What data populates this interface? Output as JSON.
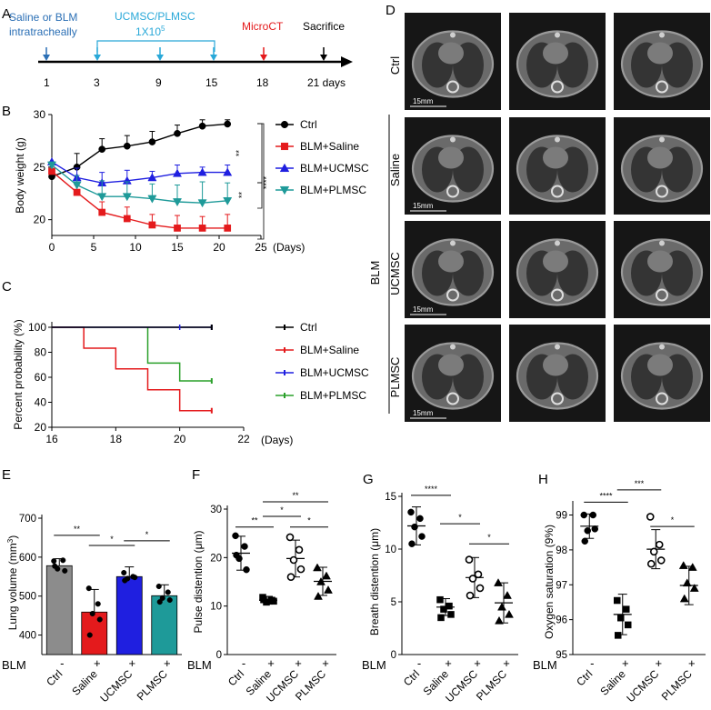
{
  "colors": {
    "ctrl": "#000000",
    "saline": "#e41a1c",
    "ucmsc": "#1f1fe0",
    "plmsc": "#1e9a99",
    "green": "#2aa02a",
    "blue": "#2b6fb5",
    "cyan": "#29a8d8",
    "micro": "#e41a1c",
    "grayBar": "#8c8c8c"
  },
  "panelA": {
    "letter": "A",
    "events": [
      {
        "label": "Saline or BLM",
        "label2": "intratracheally",
        "day": 1,
        "color": "#2b6fb5"
      },
      {
        "label": "UCMSC/PLMSC",
        "label2": "1X10",
        "sup": "5",
        "days": [
          3,
          9,
          15
        ],
        "color": "#29a8d8"
      },
      {
        "label": "MicroCT",
        "day": 18,
        "color": "#e41a1c"
      },
      {
        "label": "Sacrifice",
        "day": 21,
        "color": "#000000"
      }
    ],
    "tick_labels": [
      "1",
      "3",
      "9",
      "15",
      "18",
      "21 days"
    ]
  },
  "chart_data": [
    {
      "panel": "B",
      "letter": "B",
      "type": "line",
      "ylabel": "Body weight (g)",
      "xlabel": "(Days)",
      "xlim": [
        0,
        25
      ],
      "ylim": [
        18.5,
        30
      ],
      "xticks": [
        0,
        5,
        10,
        15,
        20,
        25
      ],
      "yticks": [
        20,
        25,
        30
      ],
      "x": [
        0,
        3,
        6,
        9,
        12,
        15,
        18,
        21
      ],
      "series": [
        {
          "name": "Ctrl",
          "marker": "circle",
          "values": [
            24.1,
            25.0,
            26.7,
            27.0,
            27.4,
            28.2,
            28.9,
            29.1
          ],
          "err": [
            0,
            1.3,
            1.0,
            1.0,
            1.0,
            0.8,
            0.6,
            0.4
          ]
        },
        {
          "name": "BLM+Saline",
          "marker": "square",
          "values": [
            24.6,
            22.6,
            20.7,
            20.1,
            19.5,
            19.2,
            19.2,
            19.2
          ],
          "err": [
            0,
            0.7,
            1.0,
            1.1,
            1.0,
            1.2,
            1.1,
            1.3
          ]
        },
        {
          "name": "BLM+UCMSC",
          "marker": "triangle",
          "values": [
            25.5,
            24.0,
            23.5,
            23.7,
            24.0,
            24.4,
            24.5,
            24.5
          ],
          "err": [
            0,
            0.9,
            1.0,
            1.0,
            0.6,
            0.8,
            0.5,
            0.7
          ]
        },
        {
          "name": "BLM+PLMSC",
          "marker": "triangle-down",
          "values": [
            25.2,
            23.3,
            22.2,
            22.2,
            22.0,
            21.7,
            21.6,
            21.8
          ],
          "err": [
            0,
            0.9,
            1.5,
            1.4,
            1.4,
            1.6,
            2.0,
            1.7
          ]
        }
      ],
      "sig": [
        "**",
        "**",
        "****"
      ]
    },
    {
      "panel": "C",
      "letter": "C",
      "type": "line",
      "ylabel": "Percent probability (%)",
      "xlabel": "(Days)",
      "xlim": [
        16,
        22
      ],
      "ylim": [
        20,
        100
      ],
      "xticks": [
        16,
        18,
        20,
        22
      ],
      "yticks": [
        20,
        40,
        60,
        80,
        100
      ],
      "series": [
        {
          "name": "Ctrl",
          "steps": [
            [
              16,
              100
            ],
            [
              21,
              100
            ]
          ]
        },
        {
          "name": "BLM+Saline",
          "steps": [
            [
              16,
              100
            ],
            [
              17,
              100
            ],
            [
              17,
              83.3
            ],
            [
              18,
              83.3
            ],
            [
              18,
              66.7
            ],
            [
              19,
              66.7
            ],
            [
              19,
              50
            ],
            [
              20,
              50
            ],
            [
              20,
              33.3
            ],
            [
              21,
              33.3
            ]
          ]
        },
        {
          "name": "BLM+UCMSC",
          "steps": [
            [
              16,
              100
            ],
            [
              21,
              100
            ]
          ]
        },
        {
          "name": "BLM+PLMSC",
          "steps": [
            [
              19,
              100
            ],
            [
              19,
              71.4
            ],
            [
              20,
              71.4
            ],
            [
              20,
              57.1
            ],
            [
              21,
              57.1
            ]
          ]
        }
      ]
    },
    {
      "panel": "E",
      "letter": "E",
      "type": "bar",
      "ylabel": "Lung volume (mm",
      "ylabel_sup": "3",
      "ylabel_end": ")",
      "categories": [
        "Ctrl",
        "Saline",
        "UCMSC",
        "PLMSC"
      ],
      "blm": [
        "-",
        "+",
        "+",
        "+"
      ],
      "blm_label": "BLM",
      "values": [
        578,
        459,
        550,
        501
      ],
      "err": [
        18,
        58,
        25,
        28
      ],
      "ylim": [
        350,
        700
      ],
      "yticks": [
        400,
        500,
        600,
        700
      ],
      "points": [
        [
          590,
          592,
          570,
          565,
          577
        ],
        [
          520,
          480,
          455,
          440,
          400
        ],
        [
          560,
          550,
          545,
          548,
          540
        ],
        [
          525,
          510,
          495,
          490,
          485
        ]
      ],
      "sig": [
        "**",
        "*",
        "*"
      ]
    },
    {
      "panel": "F",
      "letter": "F",
      "type": "scatter",
      "ylabel": "Pulse distention (μm)",
      "categories": [
        "Ctrl",
        "Saline",
        "UCMSC",
        "PLMSC"
      ],
      "blm": [
        "-",
        "+",
        "+",
        "+"
      ],
      "blm_label": "BLM",
      "values": [
        20.9,
        11.2,
        19.8,
        15.1
      ],
      "err": [
        3.5,
        0.8,
        3.8,
        2.9
      ],
      "ylim": [
        0,
        30
      ],
      "yticks": [
        0,
        10,
        20,
        30
      ],
      "points": [
        [
          24.5,
          22.3,
          19.8,
          17.5,
          20.5
        ],
        [
          11.8,
          11.2,
          10.8,
          11.0,
          11.3
        ],
        [
          24.2,
          21.6,
          19.5,
          17.6,
          16.0
        ],
        [
          17.9,
          16.2,
          15.0,
          13.3,
          12.0
        ]
      ],
      "sig": [
        "**",
        "*",
        "*",
        "**"
      ]
    },
    {
      "panel": "G",
      "letter": "G",
      "type": "scatter",
      "ylabel": "Breath distention (μm)",
      "categories": [
        "Ctrl",
        "Saline",
        "UCMSC",
        "PLMSC"
      ],
      "blm": [
        "-",
        "+",
        "+",
        "+"
      ],
      "blm_label": "BLM",
      "values": [
        12.2,
        4.5,
        7.3,
        4.9
      ],
      "err": [
        1.8,
        0.8,
        1.9,
        1.9
      ],
      "ylim": [
        0,
        15
      ],
      "yticks": [
        0,
        5,
        10,
        15
      ],
      "points": [
        [
          13.5,
          12.9,
          12.1,
          11.2,
          10.5
        ],
        [
          5.2,
          4.6,
          4.3,
          3.8,
          3.5
        ],
        [
          9.0,
          7.6,
          7.2,
          6.3,
          5.6
        ],
        [
          6.8,
          5.6,
          4.5,
          3.8,
          3.2
        ]
      ],
      "sig": [
        "****",
        "*",
        "*"
      ]
    },
    {
      "panel": "H",
      "letter": "H",
      "type": "scatter",
      "ylabel": "Oxygen saturation (9%)",
      "categories": [
        "Ctrl",
        "Saline",
        "UCMSC",
        "PLMSC"
      ],
      "blm": [
        "-",
        "+",
        "+",
        "+"
      ],
      "blm_label": "BLM",
      "values": [
        98.68,
        96.15,
        98.02,
        96.98
      ],
      "err": [
        0.35,
        0.58,
        0.56,
        0.55
      ],
      "ylim": [
        95,
        99.3
      ],
      "yticks": [
        95,
        96,
        97,
        98,
        99
      ],
      "points": [
        [
          99.0,
          99.0,
          98.55,
          98.6,
          98.25
        ],
        [
          96.55,
          96.3,
          96.05,
          95.85,
          95.55
        ],
        [
          98.95,
          98.15,
          97.95,
          97.7,
          97.6
        ],
        [
          97.55,
          97.5,
          97.05,
          96.9,
          96.6
        ]
      ],
      "sig": [
        "****",
        "***",
        "*"
      ]
    }
  ],
  "panelD": {
    "letter": "D",
    "rows": [
      "Ctrl",
      "Saline",
      "UCMSC",
      "PLMSC"
    ],
    "group": "BLM",
    "scale": "15mm"
  }
}
